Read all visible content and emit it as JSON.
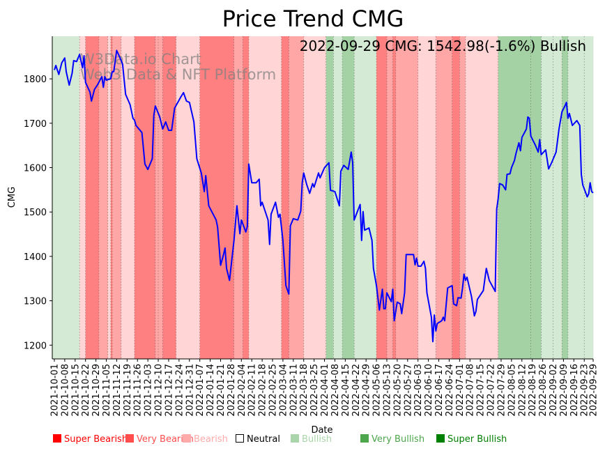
{
  "chart_data": {
    "type": "line",
    "title": "Price Trend CMG",
    "xlabel": "Date",
    "ylabel": "CMG",
    "x_origin_date": "2021-10-01",
    "x_units": "days since 2021-10-01",
    "xlim": [
      -1.4,
      363
    ],
    "ylim": [
      1169,
      1896
    ],
    "yticks": [
      1200,
      1300,
      1400,
      1500,
      1600,
      1700,
      1800
    ],
    "annotation": "2022-09-29 CMG: 1542.98(-1.6%) Bullish",
    "watermark": [
      "W3Data.io Chart",
      "Web3 Data & NFT Platform"
    ],
    "line_color": "#0000ff",
    "xticks": [
      {
        "day": 0,
        "label": "2021-10-01"
      },
      {
        "day": 7,
        "label": "2021-10-08"
      },
      {
        "day": 14,
        "label": "2021-10-15"
      },
      {
        "day": 21,
        "label": "2021-10-22"
      },
      {
        "day": 28,
        "label": "2021-10-29"
      },
      {
        "day": 35,
        "label": "2021-11-05"
      },
      {
        "day": 42,
        "label": "2021-11-12"
      },
      {
        "day": 49,
        "label": "2021-11-19"
      },
      {
        "day": 56,
        "label": "2021-11-26"
      },
      {
        "day": 63,
        "label": "2021-12-03"
      },
      {
        "day": 70,
        "label": "2021-12-10"
      },
      {
        "day": 77,
        "label": "2021-12-17"
      },
      {
        "day": 84,
        "label": "2021-12-24"
      },
      {
        "day": 91,
        "label": "2021-12-31"
      },
      {
        "day": 98,
        "label": "2022-01-07"
      },
      {
        "day": 105,
        "label": "2022-01-14"
      },
      {
        "day": 112,
        "label": "2022-01-21"
      },
      {
        "day": 119,
        "label": "2022-01-28"
      },
      {
        "day": 126,
        "label": "2022-02-04"
      },
      {
        "day": 133,
        "label": "2022-02-11"
      },
      {
        "day": 140,
        "label": "2022-02-18"
      },
      {
        "day": 147,
        "label": "2022-02-25"
      },
      {
        "day": 154,
        "label": "2022-03-04"
      },
      {
        "day": 161,
        "label": "2022-03-11"
      },
      {
        "day": 168,
        "label": "2022-03-18"
      },
      {
        "day": 175,
        "label": "2022-03-25"
      },
      {
        "day": 182,
        "label": "2022-04-01"
      },
      {
        "day": 189,
        "label": "2022-04-08"
      },
      {
        "day": 196,
        "label": "2022-04-15"
      },
      {
        "day": 203,
        "label": "2022-04-22"
      },
      {
        "day": 210,
        "label": "2022-04-29"
      },
      {
        "day": 217,
        "label": "2022-05-06"
      },
      {
        "day": 224,
        "label": "2022-05-13"
      },
      {
        "day": 231,
        "label": "2022-05-20"
      },
      {
        "day": 238,
        "label": "2022-05-27"
      },
      {
        "day": 245,
        "label": "2022-06-03"
      },
      {
        "day": 252,
        "label": "2022-06-10"
      },
      {
        "day": 259,
        "label": "2022-06-17"
      },
      {
        "day": 266,
        "label": "2022-06-24"
      },
      {
        "day": 273,
        "label": "2022-07-01"
      },
      {
        "day": 280,
        "label": "2022-07-08"
      },
      {
        "day": 287,
        "label": "2022-07-15"
      },
      {
        "day": 294,
        "label": "2022-07-22"
      },
      {
        "day": 301,
        "label": "2022-07-29"
      },
      {
        "day": 308,
        "label": "2022-08-05"
      },
      {
        "day": 315,
        "label": "2022-08-12"
      },
      {
        "day": 322,
        "label": "2022-08-19"
      },
      {
        "day": 329,
        "label": "2022-08-26"
      },
      {
        "day": 336,
        "label": "2022-09-02"
      },
      {
        "day": 343,
        "label": "2022-09-09"
      },
      {
        "day": 350,
        "label": "2022-09-16"
      },
      {
        "day": 357,
        "label": "2022-09-23"
      },
      {
        "day": 363,
        "label": "2022-09-29"
      }
    ],
    "legend": [
      {
        "label": "Super Bearish",
        "color": "#ff0000",
        "bg": "#ff8080",
        "key": "super_bearish"
      },
      {
        "label": "Very Bearish",
        "color": "#ff4d4d",
        "bg": "#ffa6a6",
        "key": "very_bearish"
      },
      {
        "label": "Bearish",
        "color": "#ffaaaa",
        "bg": "#ffd5d5",
        "key": "bearish"
      },
      {
        "label": "Neutral",
        "color": "#000000",
        "bg": "#ffffff",
        "key": "neutral"
      },
      {
        "label": "Bullish",
        "color": "#aad4aa",
        "bg": "#d5ead5",
        "key": "bullish"
      },
      {
        "label": "Very Bullish",
        "color": "#4ca64c",
        "bg": "#a5d2a5",
        "key": "very_bullish"
      },
      {
        "label": "Super Bullish",
        "color": "#008000",
        "bg": "#80c080",
        "key": "super_bullish"
      }
    ],
    "bands": [
      [
        -1.4,
        17,
        "bullish"
      ],
      [
        17,
        21,
        "bearish"
      ],
      [
        21,
        30,
        "super_bearish"
      ],
      [
        30,
        36,
        "very_bearish"
      ],
      [
        36,
        38,
        "bearish"
      ],
      [
        38,
        39,
        "super_bearish"
      ],
      [
        39,
        45,
        "very_bearish"
      ],
      [
        45,
        54,
        "bearish"
      ],
      [
        54,
        68,
        "super_bearish"
      ],
      [
        68,
        70,
        "very_bearish"
      ],
      [
        70,
        73,
        "very_bearish"
      ],
      [
        73,
        82,
        "super_bearish"
      ],
      [
        82,
        98,
        "bearish"
      ],
      [
        98,
        121,
        "super_bearish"
      ],
      [
        121,
        127,
        "very_bearish"
      ],
      [
        127,
        131,
        "super_bearish"
      ],
      [
        131,
        153,
        "bearish"
      ],
      [
        153,
        158,
        "super_bearish"
      ],
      [
        158,
        168,
        "very_bearish"
      ],
      [
        168,
        183,
        "bearish"
      ],
      [
        183,
        188,
        "very_bullish"
      ],
      [
        188,
        194,
        "bullish"
      ],
      [
        194,
        202,
        "very_bullish"
      ],
      [
        202,
        217,
        "bullish"
      ],
      [
        217,
        224,
        "super_bearish"
      ],
      [
        224,
        228,
        "very_bearish"
      ],
      [
        228,
        230,
        "super_bearish"
      ],
      [
        230,
        245,
        "very_bearish"
      ],
      [
        245,
        257,
        "bearish"
      ],
      [
        257,
        268,
        "very_bearish"
      ],
      [
        268,
        273,
        "super_bearish"
      ],
      [
        273,
        277,
        "very_bearish"
      ],
      [
        277,
        299,
        "bearish"
      ],
      [
        299,
        321,
        "very_bullish"
      ],
      [
        321,
        328,
        "very_bullish"
      ],
      [
        328,
        336,
        "bullish"
      ],
      [
        336,
        342,
        "bullish"
      ],
      [
        342,
        346,
        "very_bullish"
      ],
      [
        346,
        357,
        "bullish"
      ],
      [
        357,
        363,
        "bullish"
      ]
    ],
    "points": [
      [
        0,
        1820
      ],
      [
        1,
        1830
      ],
      [
        3,
        1810
      ],
      [
        5,
        1836
      ],
      [
        7,
        1847
      ],
      [
        8,
        1816
      ],
      [
        10,
        1786
      ],
      [
        12,
        1813
      ],
      [
        13,
        1841
      ],
      [
        15,
        1839
      ],
      [
        17,
        1855
      ],
      [
        19,
        1825
      ],
      [
        20,
        1852
      ],
      [
        21,
        1792
      ],
      [
        24,
        1770
      ],
      [
        25,
        1750
      ],
      [
        27,
        1776
      ],
      [
        29,
        1786
      ],
      [
        32,
        1805
      ],
      [
        33,
        1781
      ],
      [
        34,
        1805
      ],
      [
        35,
        1797
      ],
      [
        38,
        1800
      ],
      [
        39,
        1816
      ],
      [
        40,
        1816
      ],
      [
        42,
        1864
      ],
      [
        44,
        1849
      ],
      [
        46,
        1833
      ],
      [
        48,
        1765
      ],
      [
        51,
        1742
      ],
      [
        53,
        1711
      ],
      [
        54,
        1707
      ],
      [
        55,
        1695
      ],
      [
        59,
        1679
      ],
      [
        61,
        1608
      ],
      [
        63,
        1596
      ],
      [
        66,
        1620
      ],
      [
        67,
        1718
      ],
      [
        68,
        1739
      ],
      [
        71,
        1714
      ],
      [
        73,
        1687
      ],
      [
        75,
        1703
      ],
      [
        77,
        1684
      ],
      [
        79,
        1684
      ],
      [
        81,
        1734
      ],
      [
        85,
        1758
      ],
      [
        87,
        1769
      ],
      [
        89,
        1750
      ],
      [
        91,
        1747
      ],
      [
        94,
        1703
      ],
      [
        96,
        1620
      ],
      [
        99,
        1588
      ],
      [
        101,
        1546
      ],
      [
        102,
        1582
      ],
      [
        104,
        1514
      ],
      [
        107,
        1495
      ],
      [
        109,
        1482
      ],
      [
        110,
        1466
      ],
      [
        112,
        1380
      ],
      [
        114,
        1404
      ],
      [
        115,
        1419
      ],
      [
        116,
        1373
      ],
      [
        118,
        1346
      ],
      [
        121,
        1436
      ],
      [
        123,
        1514
      ],
      [
        125,
        1451
      ],
      [
        126,
        1482
      ],
      [
        129,
        1455
      ],
      [
        130,
        1467
      ],
      [
        131,
        1608
      ],
      [
        133,
        1566
      ],
      [
        136,
        1566
      ],
      [
        138,
        1574
      ],
      [
        139,
        1514
      ],
      [
        140,
        1522
      ],
      [
        144,
        1482
      ],
      [
        145,
        1427
      ],
      [
        146,
        1495
      ],
      [
        149,
        1522
      ],
      [
        151,
        1488
      ],
      [
        152,
        1495
      ],
      [
        154,
        1436
      ],
      [
        156,
        1334
      ],
      [
        158,
        1315
      ],
      [
        159,
        1469
      ],
      [
        161,
        1485
      ],
      [
        164,
        1482
      ],
      [
        166,
        1502
      ],
      [
        167,
        1566
      ],
      [
        168,
        1588
      ],
      [
        170,
        1562
      ],
      [
        172,
        1542
      ],
      [
        174,
        1564
      ],
      [
        175,
        1556
      ],
      [
        178,
        1588
      ],
      [
        179,
        1577
      ],
      [
        182,
        1600
      ],
      [
        185,
        1611
      ],
      [
        186,
        1549
      ],
      [
        189,
        1546
      ],
      [
        192,
        1514
      ],
      [
        193,
        1592
      ],
      [
        195,
        1605
      ],
      [
        198,
        1596
      ],
      [
        200,
        1635
      ],
      [
        201,
        1611
      ],
      [
        202,
        1482
      ],
      [
        206,
        1517
      ],
      [
        207,
        1436
      ],
      [
        208,
        1501
      ],
      [
        209,
        1459
      ],
      [
        212,
        1464
      ],
      [
        214,
        1436
      ],
      [
        215,
        1373
      ],
      [
        217,
        1334
      ],
      [
        219,
        1279
      ],
      [
        221,
        1326
      ],
      [
        222,
        1282
      ],
      [
        223,
        1282
      ],
      [
        224,
        1318
      ],
      [
        227,
        1298
      ],
      [
        228,
        1326
      ],
      [
        229,
        1255
      ],
      [
        231,
        1297
      ],
      [
        233,
        1293
      ],
      [
        234,
        1271
      ],
      [
        236,
        1318
      ],
      [
        237,
        1404
      ],
      [
        242,
        1404
      ],
      [
        243,
        1381
      ],
      [
        244,
        1396
      ],
      [
        245,
        1378
      ],
      [
        247,
        1378
      ],
      [
        249,
        1389
      ],
      [
        250,
        1373
      ],
      [
        251,
        1318
      ],
      [
        254,
        1263
      ],
      [
        255,
        1208
      ],
      [
        256,
        1268
      ],
      [
        257,
        1232
      ],
      [
        258,
        1249
      ],
      [
        261,
        1255
      ],
      [
        262,
        1263
      ],
      [
        263,
        1255
      ],
      [
        265,
        1329
      ],
      [
        268,
        1334
      ],
      [
        269,
        1293
      ],
      [
        271,
        1289
      ],
      [
        272,
        1307
      ],
      [
        274,
        1306
      ],
      [
        275,
        1329
      ],
      [
        276,
        1360
      ],
      [
        277,
        1346
      ],
      [
        278,
        1353
      ],
      [
        281,
        1310
      ],
      [
        283,
        1266
      ],
      [
        284,
        1276
      ],
      [
        285,
        1303
      ],
      [
        289,
        1323
      ],
      [
        291,
        1373
      ],
      [
        292,
        1360
      ],
      [
        293,
        1346
      ],
      [
        297,
        1321
      ],
      [
        298,
        1506
      ],
      [
        299,
        1530
      ],
      [
        300,
        1564
      ],
      [
        302,
        1561
      ],
      [
        304,
        1550
      ],
      [
        305,
        1585
      ],
      [
        307,
        1586
      ],
      [
        308,
        1600
      ],
      [
        310,
        1616
      ],
      [
        311,
        1632
      ],
      [
        313,
        1656
      ],
      [
        314,
        1638
      ],
      [
        315,
        1668
      ],
      [
        318,
        1687
      ],
      [
        319,
        1714
      ],
      [
        320,
        1711
      ],
      [
        321,
        1671
      ],
      [
        324,
        1651
      ],
      [
        326,
        1635
      ],
      [
        327,
        1663
      ],
      [
        328,
        1629
      ],
      [
        331,
        1640
      ],
      [
        333,
        1597
      ],
      [
        335,
        1611
      ],
      [
        338,
        1635
      ],
      [
        340,
        1687
      ],
      [
        342,
        1726
      ],
      [
        344,
        1739
      ],
      [
        345,
        1747
      ],
      [
        346,
        1711
      ],
      [
        347,
        1722
      ],
      [
        349,
        1695
      ],
      [
        352,
        1706
      ],
      [
        354,
        1695
      ],
      [
        355,
        1585
      ],
      [
        356,
        1561
      ],
      [
        359,
        1534
      ],
      [
        360,
        1541
      ],
      [
        361,
        1566
      ],
      [
        362,
        1546
      ],
      [
        363,
        1543
      ]
    ]
  }
}
